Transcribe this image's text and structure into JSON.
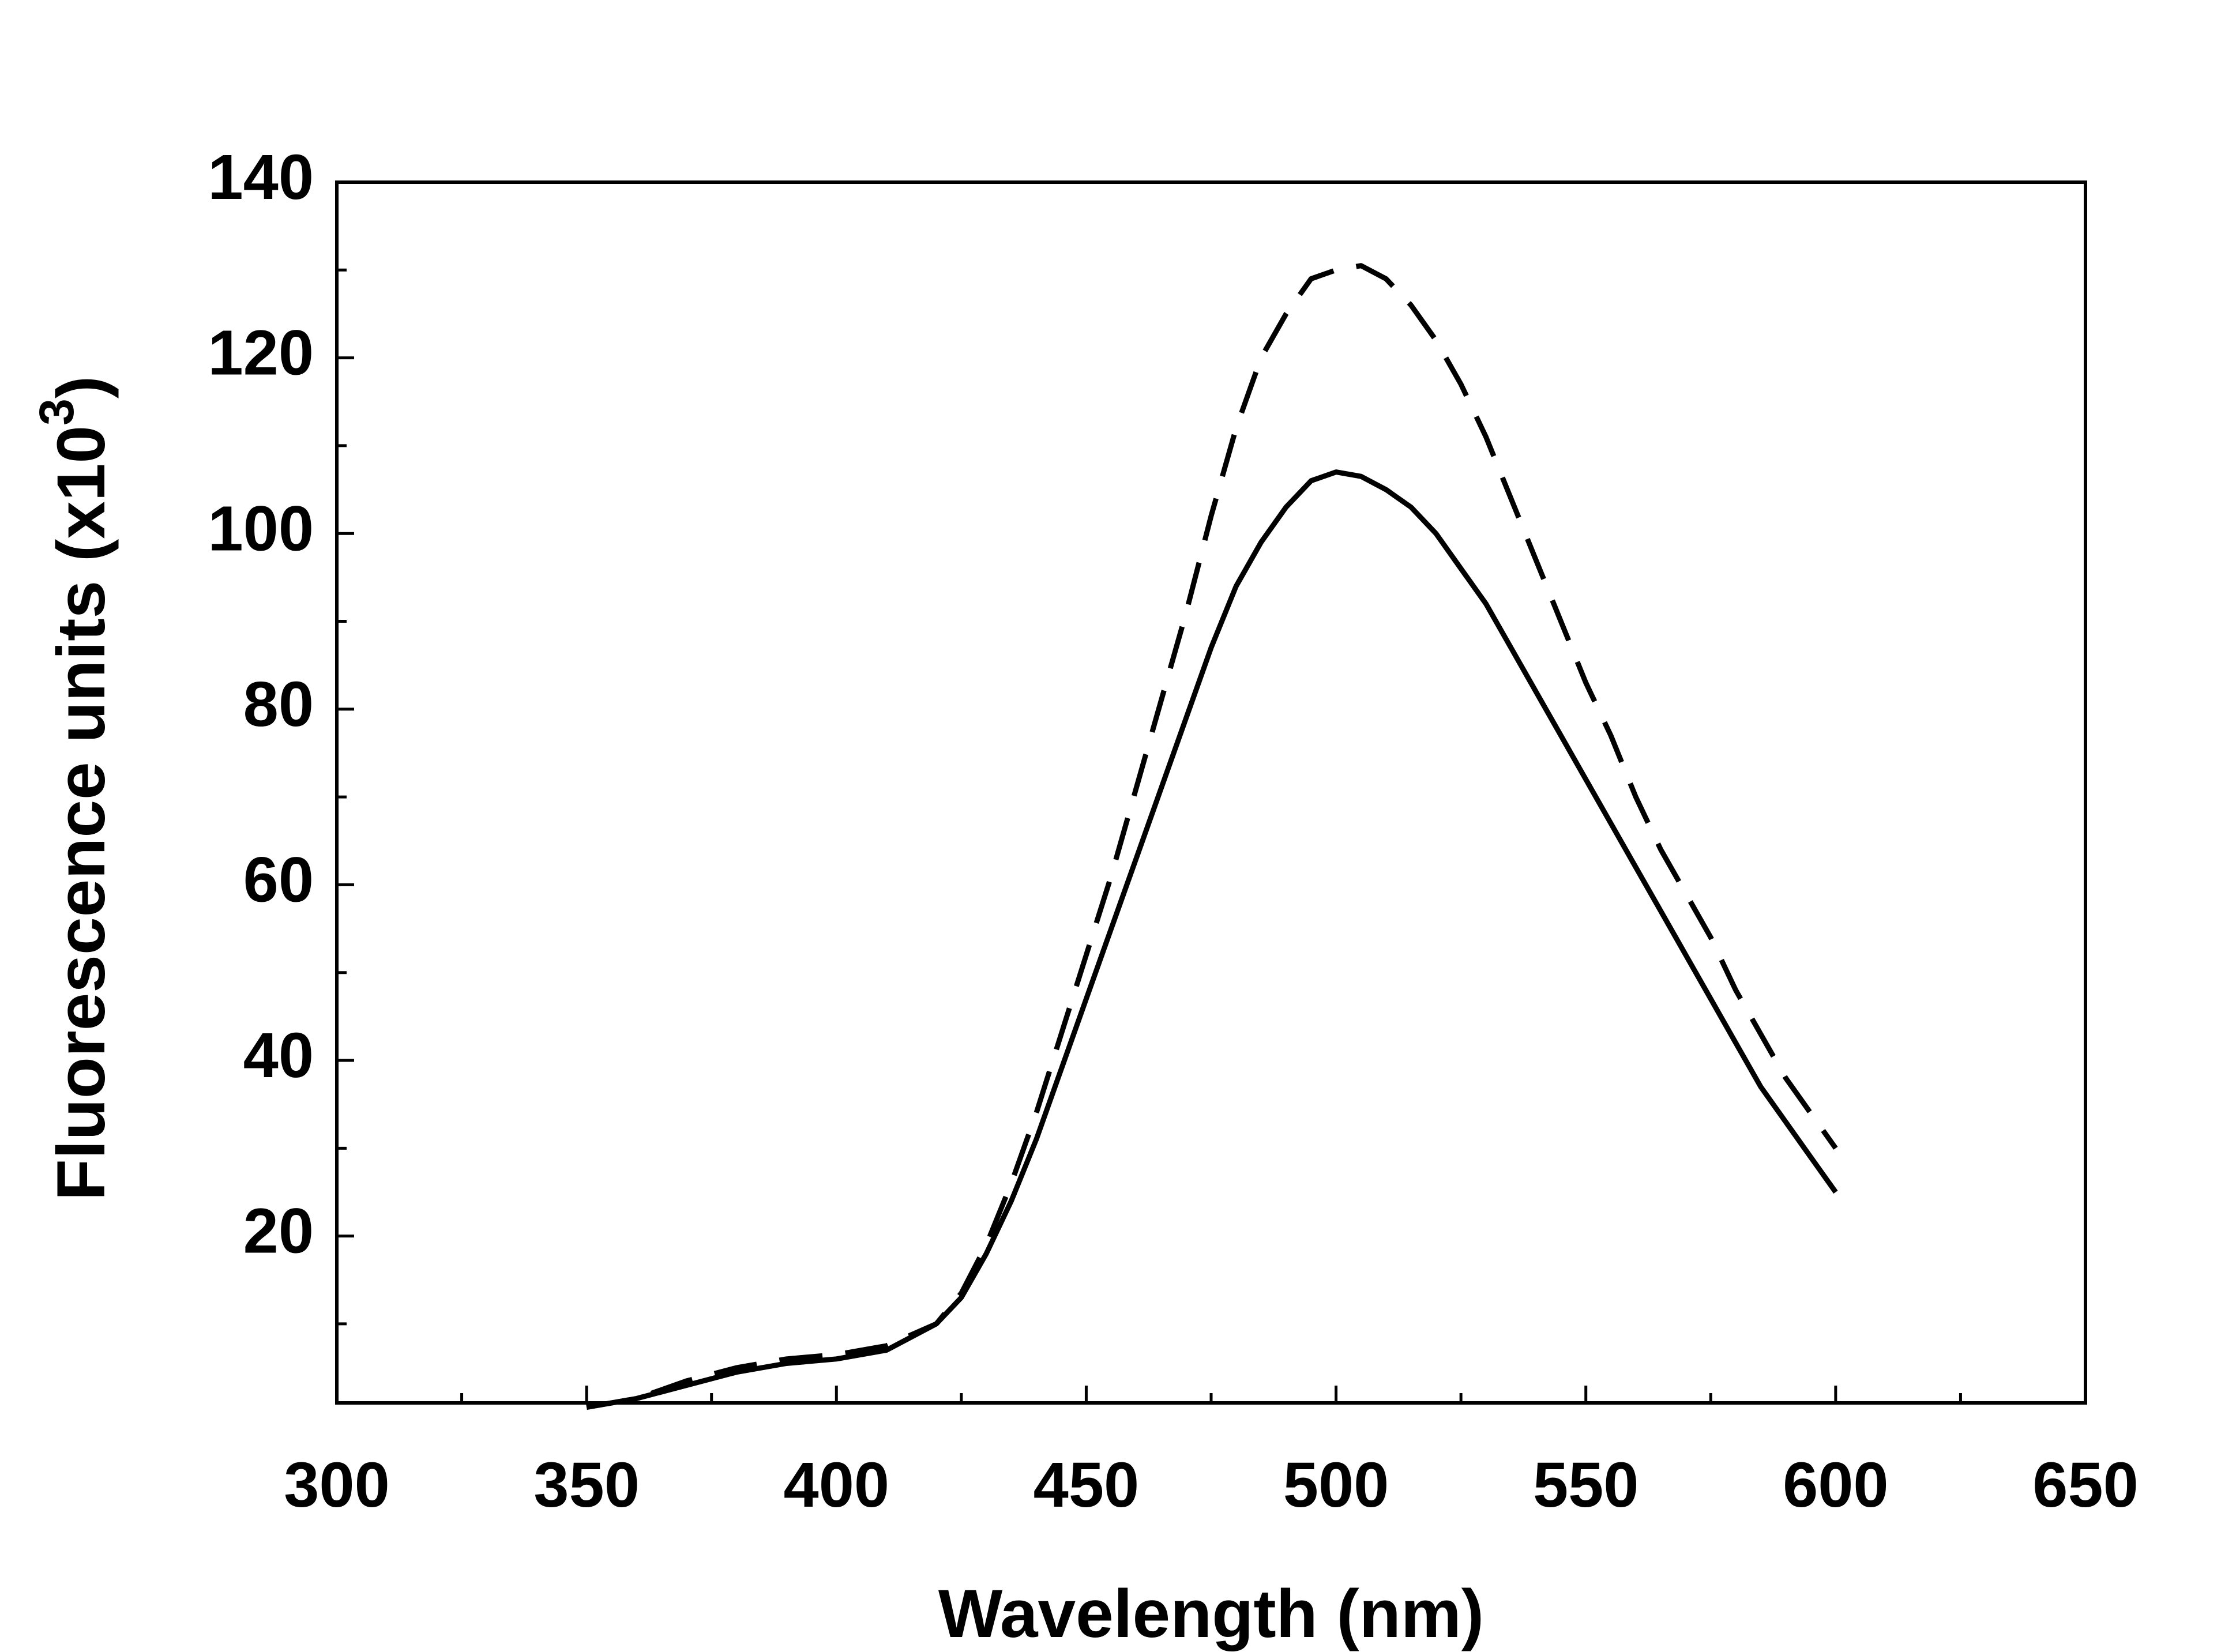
{
  "chart_data": {
    "type": "line",
    "xlabel": "Wavelength (nm)",
    "ylabel": [
      "Fluorescence units (x10",
      "3",
      ")"
    ],
    "xlim": [
      300,
      650
    ],
    "ylim": [
      1,
      140
    ],
    "xticks": [
      300,
      350,
      400,
      450,
      500,
      550,
      600,
      650
    ],
    "yticks": [
      20,
      40,
      60,
      80,
      100,
      120,
      140
    ],
    "xminor_ticks": [
      325,
      375,
      425,
      475,
      525,
      575,
      625
    ],
    "yminor_ticks": [
      10,
      30,
      50,
      70,
      90,
      110,
      130
    ],
    "x": [
      350,
      360,
      370,
      380,
      390,
      400,
      410,
      420,
      425,
      430,
      435,
      440,
      445,
      450,
      455,
      460,
      465,
      470,
      475,
      480,
      485,
      490,
      495,
      500,
      505,
      510,
      515,
      520,
      525,
      530,
      535,
      540,
      545,
      550,
      555,
      560,
      565,
      570,
      575,
      580,
      585,
      590,
      595,
      600
    ],
    "series": [
      {
        "color": "#000000",
        "dash": "solid",
        "values": [
          0.5,
          1.5,
          3,
          4.5,
          5.5,
          6,
          7,
          10,
          13,
          18,
          24,
          31,
          39,
          47,
          55,
          63,
          71,
          79,
          87,
          94,
          99,
          103,
          106,
          107,
          106.5,
          105,
          103,
          100,
          96,
          92,
          87,
          82,
          77,
          72,
          67,
          62,
          57,
          52,
          47,
          42,
          37,
          33,
          29,
          25
        ]
      },
      {
        "color": "#000000",
        "dash": "dashed",
        "values": [
          0.5,
          1.5,
          3.5,
          5,
          6,
          6.5,
          7.5,
          10,
          13.5,
          19,
          26,
          34,
          43,
          52,
          61,
          71,
          81,
          91,
          102,
          112,
          120,
          125,
          129,
          130,
          130.5,
          129,
          126,
          122,
          117,
          111,
          104,
          97,
          90,
          83,
          77,
          70,
          64,
          59,
          54,
          48,
          43,
          38,
          34,
          30
        ]
      }
    ]
  }
}
